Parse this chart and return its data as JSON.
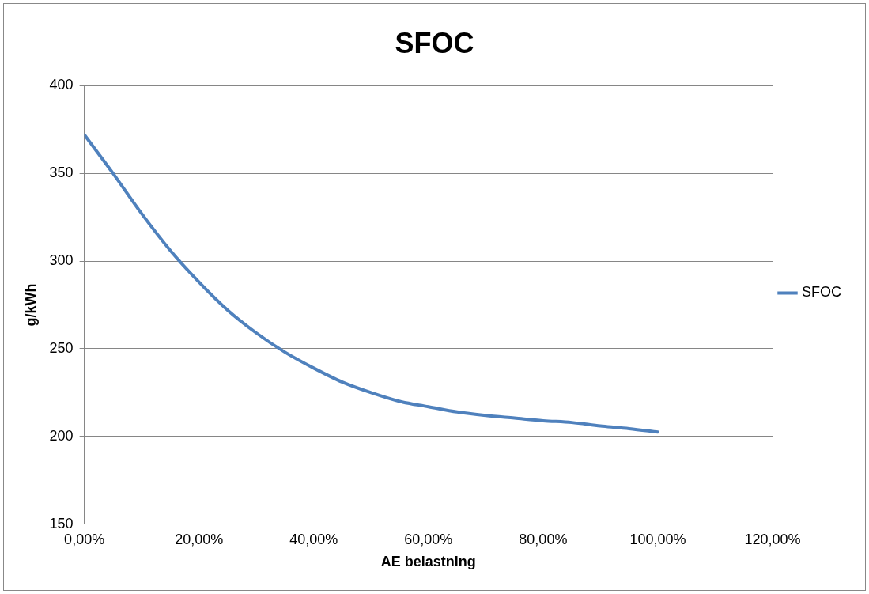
{
  "chart_data": {
    "type": "line",
    "title": "SFOC",
    "xlabel": "AE belastning",
    "ylabel": "g/kWh",
    "x": [
      0,
      5,
      10,
      15,
      20,
      25,
      30,
      35,
      40,
      45,
      50,
      55,
      60,
      65,
      70,
      75,
      80,
      85,
      90,
      95,
      100
    ],
    "series": [
      {
        "name": "SFOC",
        "color": "#4f81bd",
        "values": [
          372,
          350,
          327,
          306,
          288,
          272,
          259,
          248,
          239,
          231,
          225,
          220,
          217,
          214,
          212,
          210.5,
          209,
          208,
          206,
          204.5,
          202.5
        ]
      }
    ],
    "xlim": [
      0,
      120
    ],
    "xticks": [
      {
        "value": 0,
        "label": "0,00%"
      },
      {
        "value": 20,
        "label": "20,00%"
      },
      {
        "value": 40,
        "label": "40,00%"
      },
      {
        "value": 60,
        "label": "60,00%"
      },
      {
        "value": 80,
        "label": "80,00%"
      },
      {
        "value": 100,
        "label": "100,00%"
      },
      {
        "value": 120,
        "label": "120,00%"
      }
    ],
    "ylim": [
      150,
      400
    ],
    "yticks": [
      150,
      200,
      250,
      300,
      350,
      400
    ],
    "grid": "y",
    "legend": "right",
    "marker": "none",
    "line_style": "solid"
  }
}
